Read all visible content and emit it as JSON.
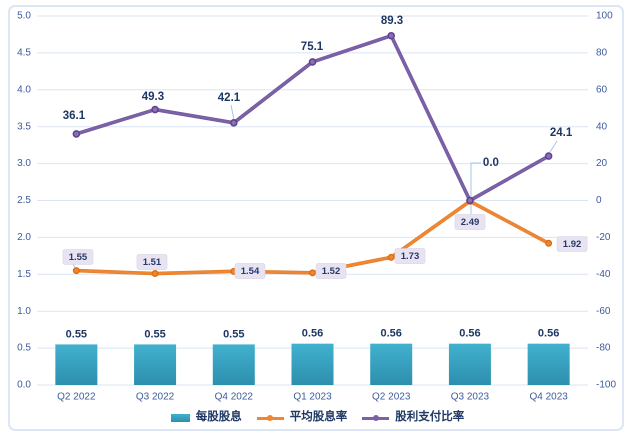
{
  "chart_data": {
    "type": "combo",
    "categories": [
      "Q2 2022",
      "Q3 2022",
      "Q4 2022",
      "Q1 2023",
      "Q2 2023",
      "Q3 2023",
      "Q4 2023"
    ],
    "series": [
      {
        "name": "每股股息",
        "type": "bar",
        "axis": "left",
        "values": [
          0.55,
          0.55,
          0.55,
          0.56,
          0.56,
          0.56,
          0.56
        ],
        "labels": [
          "0.55",
          "0.55",
          "0.55",
          "0.56",
          "0.56",
          "0.56",
          "0.56"
        ],
        "color_top": "#41B1CE",
        "color_bottom": "#2D8FAE"
      },
      {
        "name": "平均股息率",
        "type": "line",
        "axis": "left",
        "values": [
          1.55,
          1.51,
          1.54,
          1.52,
          1.73,
          2.49,
          1.92
        ],
        "labels": [
          "1.55",
          "1.51",
          "1.54",
          "1.52",
          "1.73",
          "2.49",
          "1.92"
        ],
        "color": "#F28630",
        "color_dark": "#D96F14",
        "label_style": "boxed"
      },
      {
        "name": "股利支付比率",
        "type": "line",
        "axis": "right",
        "values": [
          36.1,
          49.3,
          42.1,
          75.1,
          89.3,
          0.0,
          24.1
        ],
        "labels": [
          "36.1",
          "49.3",
          "42.1",
          "75.1",
          "89.3",
          "0.0",
          "24.1"
        ],
        "color": "#7C61A9",
        "color_dark": "#5E458F",
        "label_style": "bold"
      }
    ],
    "axes": {
      "left": {
        "min": 0,
        "max": 5,
        "step": 0.5,
        "decimals": 1
      },
      "right": {
        "min": -100,
        "max": 100,
        "step": 20,
        "decimals": 0
      }
    },
    "grid": true,
    "legend_position": "bottom",
    "colors": {
      "gridline": "#DBE4F3",
      "tick_text": "#3D5B9C",
      "category_text": "#3D5B9C",
      "data_label": "#1E3765",
      "boxed_label_bg": "#E8E3F1",
      "boxed_label_text": "#27386B",
      "leader_line": "#A4C4E6",
      "frame_border": "#DDE6F4"
    }
  }
}
